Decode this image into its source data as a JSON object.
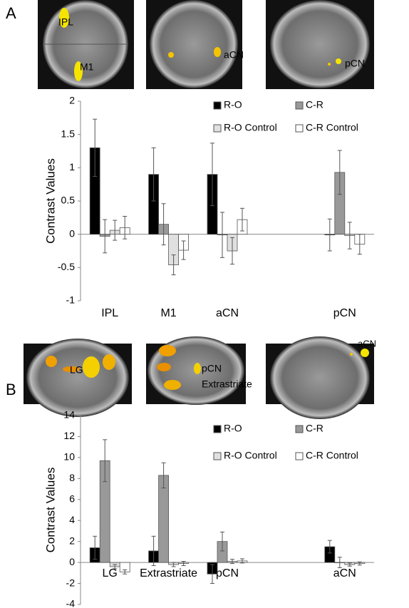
{
  "panels": [
    {
      "label": "A",
      "image_labels": [
        "IPL",
        "M1",
        "aCN",
        "pCN"
      ]
    },
    {
      "label": "B",
      "image_labels": [
        "LG",
        "pCN",
        "Extrastriate",
        "aCN"
      ]
    }
  ],
  "chart_data": [
    {
      "type": "bar",
      "y_label": "Contrast Values",
      "categories": [
        "IPL",
        "M1",
        "aCN",
        null,
        "pCN"
      ],
      "series": [
        {
          "name": "R-O",
          "color": "#000000",
          "values": [
            1.3,
            0.9,
            0.9,
            null,
            -0.01
          ],
          "errors": [
            0.43,
            0.4,
            0.47,
            null,
            0.24
          ]
        },
        {
          "name": "C-R",
          "color": "#999999",
          "values": [
            -0.03,
            0.15,
            -0.01,
            null,
            0.93
          ],
          "errors": [
            0.25,
            0.31,
            0.34,
            null,
            0.33
          ]
        },
        {
          "name": "R-O Control",
          "color": "#e0e0e0",
          "values": [
            0.06,
            -0.46,
            -0.25,
            null,
            -0.02
          ],
          "errors": [
            0.15,
            0.15,
            0.2,
            null,
            0.2
          ]
        },
        {
          "name": "C-R Control",
          "color": "#ffffff",
          "values": [
            0.1,
            -0.24,
            0.22,
            null,
            -0.15
          ],
          "errors": [
            0.17,
            0.14,
            0.17,
            null,
            0.15
          ]
        }
      ],
      "ylim": [
        -1,
        2
      ],
      "yticks": [
        -1,
        -0.5,
        0,
        0.5,
        1,
        1.5,
        2
      ],
      "legend": "top-right",
      "grid": false
    },
    {
      "type": "bar",
      "y_label": "Contrast Values",
      "categories": [
        "LG",
        "Extrastriate",
        "pCN",
        null,
        "aCN"
      ],
      "series": [
        {
          "name": "R-O",
          "color": "#000000",
          "values": [
            1.4,
            1.1,
            -1.1,
            null,
            1.5
          ],
          "errors": [
            1.1,
            1.4,
            0.9,
            null,
            0.6
          ]
        },
        {
          "name": "C-R",
          "color": "#999999",
          "values": [
            9.7,
            8.3,
            2.0,
            null,
            0.0
          ],
          "errors": [
            2.0,
            1.2,
            0.9,
            null,
            0.5
          ]
        },
        {
          "name": "R-O Control",
          "color": "#e0e0e0",
          "values": [
            -0.4,
            -0.2,
            0.1,
            null,
            -0.2
          ],
          "errors": [
            0.2,
            0.2,
            0.2,
            null,
            0.15
          ]
        },
        {
          "name": "C-R Control",
          "color": "#ffffff",
          "values": [
            -0.9,
            -0.1,
            0.15,
            null,
            -0.1
          ],
          "errors": [
            0.2,
            0.2,
            0.2,
            null,
            0.15
          ]
        }
      ],
      "ylim": [
        -4,
        14
      ],
      "yticks": [
        -4,
        -2,
        0,
        2,
        4,
        6,
        8,
        10,
        12,
        14
      ],
      "legend": "top-right",
      "grid": false
    }
  ]
}
